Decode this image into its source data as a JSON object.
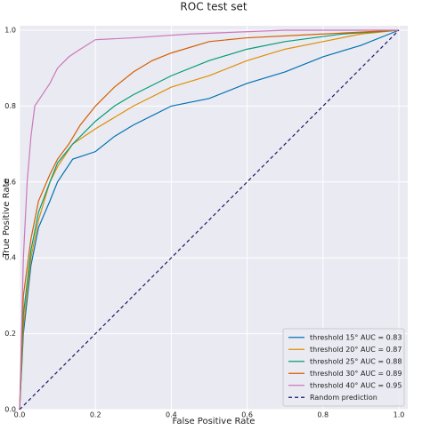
{
  "chart_data": {
    "type": "line",
    "title": "ROC test set",
    "x_label": "False Positive Rate",
    "y_label": "True Positive Rate",
    "xlim": [
      0,
      1
    ],
    "ylim": [
      0,
      1
    ],
    "xticks": [
      {
        "value": 0,
        "label": "0.0"
      },
      0.2,
      0.4,
      0.6,
      0.8,
      {
        "value": 1,
        "label": "1.0"
      }
    ],
    "yticks": [
      {
        "value": 0,
        "label": "0.0"
      },
      0.2,
      0.4,
      0.6,
      0.8,
      {
        "value": 1,
        "label": "1.0"
      }
    ],
    "grid": true,
    "legend": "lower right",
    "series": [
      {
        "name": "threshold 15° AUC = 0.83",
        "color": "#0173b2",
        "x": [
          0,
          0.01,
          0.03,
          0.05,
          0.08,
          0.1,
          0.14,
          0.2,
          0.25,
          0.3,
          0.4,
          0.5,
          0.6,
          0.7,
          0.8,
          0.9,
          1
        ],
        "values": [
          0,
          0.2,
          0.38,
          0.48,
          0.55,
          0.6,
          0.66,
          0.68,
          0.72,
          0.75,
          0.8,
          0.82,
          0.86,
          0.89,
          0.93,
          0.96,
          1
        ]
      },
      {
        "name": "threshold 20° AUC = 0.87",
        "color": "#de8f05",
        "x": [
          0,
          0.01,
          0.03,
          0.05,
          0.08,
          0.1,
          0.14,
          0.2,
          0.3,
          0.4,
          0.5,
          0.6,
          0.7,
          0.8,
          0.9,
          1
        ],
        "values": [
          0,
          0.22,
          0.4,
          0.5,
          0.6,
          0.64,
          0.7,
          0.74,
          0.8,
          0.85,
          0.88,
          0.92,
          0.95,
          0.97,
          0.99,
          1
        ]
      },
      {
        "name": "threshold 25° AUC = 0.88",
        "color": "#029e73",
        "x": [
          0,
          0.01,
          0.03,
          0.05,
          0.08,
          0.1,
          0.14,
          0.2,
          0.25,
          0.3,
          0.4,
          0.5,
          0.6,
          0.7,
          0.85,
          1
        ],
        "values": [
          0,
          0.25,
          0.42,
          0.52,
          0.6,
          0.65,
          0.7,
          0.76,
          0.8,
          0.83,
          0.88,
          0.92,
          0.95,
          0.97,
          0.99,
          1
        ]
      },
      {
        "name": "threshold 30° AUC = 0.89",
        "color": "#d55e00",
        "x": [
          0,
          0.01,
          0.03,
          0.05,
          0.08,
          0.1,
          0.13,
          0.16,
          0.2,
          0.25,
          0.3,
          0.35,
          0.4,
          0.5,
          0.6,
          0.8,
          1
        ],
        "values": [
          0,
          0.3,
          0.45,
          0.55,
          0.62,
          0.66,
          0.7,
          0.75,
          0.8,
          0.85,
          0.89,
          0.92,
          0.94,
          0.97,
          0.98,
          0.99,
          1
        ]
      },
      {
        "name": "threshold 40° AUC = 0.95",
        "color": "#cc78bc",
        "x": [
          0,
          0.005,
          0.01,
          0.02,
          0.03,
          0.04,
          0.06,
          0.08,
          0.1,
          0.13,
          0.16,
          0.2,
          0.3,
          0.45,
          0.7,
          1
        ],
        "values": [
          0,
          0.2,
          0.4,
          0.6,
          0.72,
          0.8,
          0.83,
          0.86,
          0.9,
          0.93,
          0.95,
          0.975,
          0.98,
          0.99,
          1,
          1
        ]
      },
      {
        "name": "Random prediction",
        "color": "#1a1a6e",
        "dashed": true,
        "x": [
          0,
          1
        ],
        "values": [
          0,
          1
        ]
      }
    ]
  }
}
